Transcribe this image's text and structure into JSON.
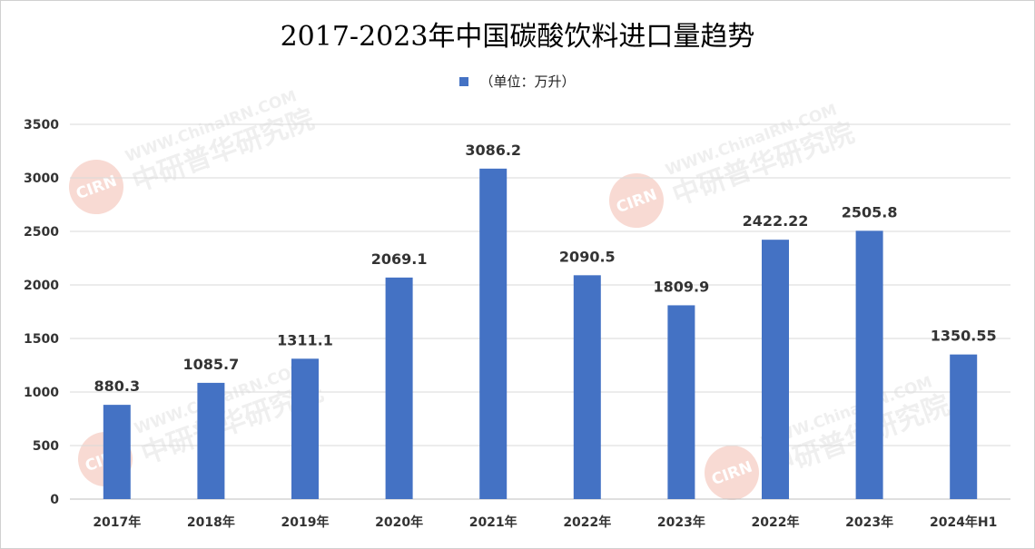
{
  "chart_data": {
    "type": "bar",
    "title": "2017-2023年中国碳酸饮料进口量趋势",
    "legend": [
      "（单位：万升）"
    ],
    "legend_position": "top-center",
    "categories": [
      "2017年",
      "2018年",
      "2019年",
      "2020年",
      "2021年",
      "2022年",
      "2023年",
      "2022年",
      "2023年",
      "2024年H1"
    ],
    "series": [
      {
        "name": "（单位：万升）",
        "values": [
          880.3,
          1085.7,
          1311.1,
          2069.1,
          3086.2,
          2090.5,
          1809.9,
          2422.22,
          2505.8,
          1350.55
        ],
        "value_labels": [
          "880.3",
          "1085.7",
          "1311.1",
          "2069.1",
          "3086.2",
          "2090.5",
          "1809.9",
          "2422.22",
          "2505.8",
          "1350.55"
        ],
        "color": "#4472c4"
      }
    ],
    "xlabel": "",
    "ylabel": "",
    "ylim": [
      0,
      3500
    ],
    "yticks": [
      0,
      500,
      1000,
      1500,
      2000,
      2500,
      3000,
      3500
    ],
    "grid": true
  },
  "watermark": {
    "url": "WWW.ChinaIRN.COM",
    "name": "中研普华研究院",
    "logo": "CIRN",
    "color": "#e05a3a"
  }
}
